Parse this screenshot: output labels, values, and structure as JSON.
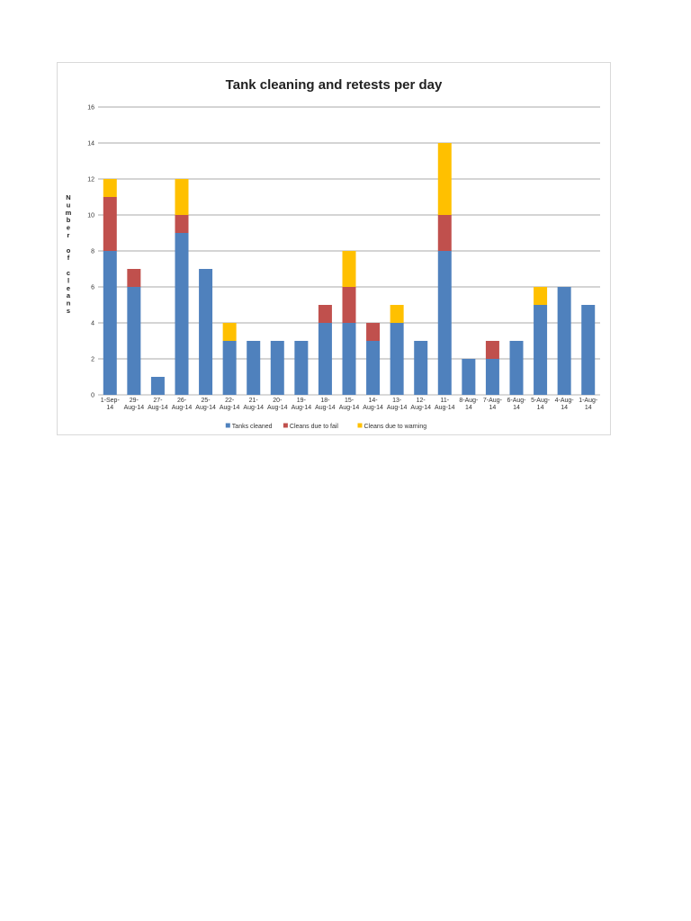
{
  "chart_data": {
    "type": "bar",
    "stacked": true,
    "title": "Tank cleaning and retests per day",
    "xlabel": "",
    "ylabel": "Number of cleans",
    "ylim": [
      0,
      16
    ],
    "yticks": [
      0,
      2,
      4,
      6,
      8,
      10,
      12,
      14,
      16
    ],
    "grid": true,
    "legend_position": "bottom",
    "categories": [
      [
        "1-Sep-",
        "14"
      ],
      [
        "29-",
        "Aug-14"
      ],
      [
        "27-",
        "Aug-14"
      ],
      [
        "26-",
        "Aug-14"
      ],
      [
        "25-",
        "Aug-14"
      ],
      [
        "22-",
        "Aug-14"
      ],
      [
        "21-",
        "Aug-14"
      ],
      [
        "20-",
        "Aug-14"
      ],
      [
        "19-",
        "Aug-14"
      ],
      [
        "18-",
        "Aug-14"
      ],
      [
        "15-",
        "Aug-14"
      ],
      [
        "14-",
        "Aug-14"
      ],
      [
        "13-",
        "Aug-14"
      ],
      [
        "12-",
        "Aug-14"
      ],
      [
        "11-",
        "Aug-14"
      ],
      [
        "8-Aug-",
        "14"
      ],
      [
        "7-Aug-",
        "14"
      ],
      [
        "6-Aug-",
        "14"
      ],
      [
        "5-Aug-",
        "14"
      ],
      [
        "4-Aug-",
        "14"
      ],
      [
        "1-Aug-",
        "14"
      ]
    ],
    "series": [
      {
        "name": "Tanks cleaned",
        "color": "#4f81bd",
        "values": [
          8,
          6,
          1,
          9,
          7,
          3,
          3,
          3,
          3,
          4,
          4,
          3,
          4,
          3,
          8,
          2,
          2,
          3,
          5,
          6,
          5
        ]
      },
      {
        "name": "Cleans due to fail",
        "color": "#c0504d",
        "values": [
          3,
          1,
          0,
          1,
          0,
          0,
          0,
          0,
          0,
          1,
          2,
          1,
          0,
          0,
          2,
          0,
          1,
          0,
          0,
          0,
          0
        ]
      },
      {
        "name": "Cleans due to warning",
        "color": "#ffc000",
        "values": [
          1,
          0,
          0,
          2,
          0,
          1,
          0,
          0,
          0,
          0,
          2,
          0,
          1,
          0,
          4,
          0,
          0,
          0,
          1,
          0,
          0
        ]
      }
    ]
  }
}
